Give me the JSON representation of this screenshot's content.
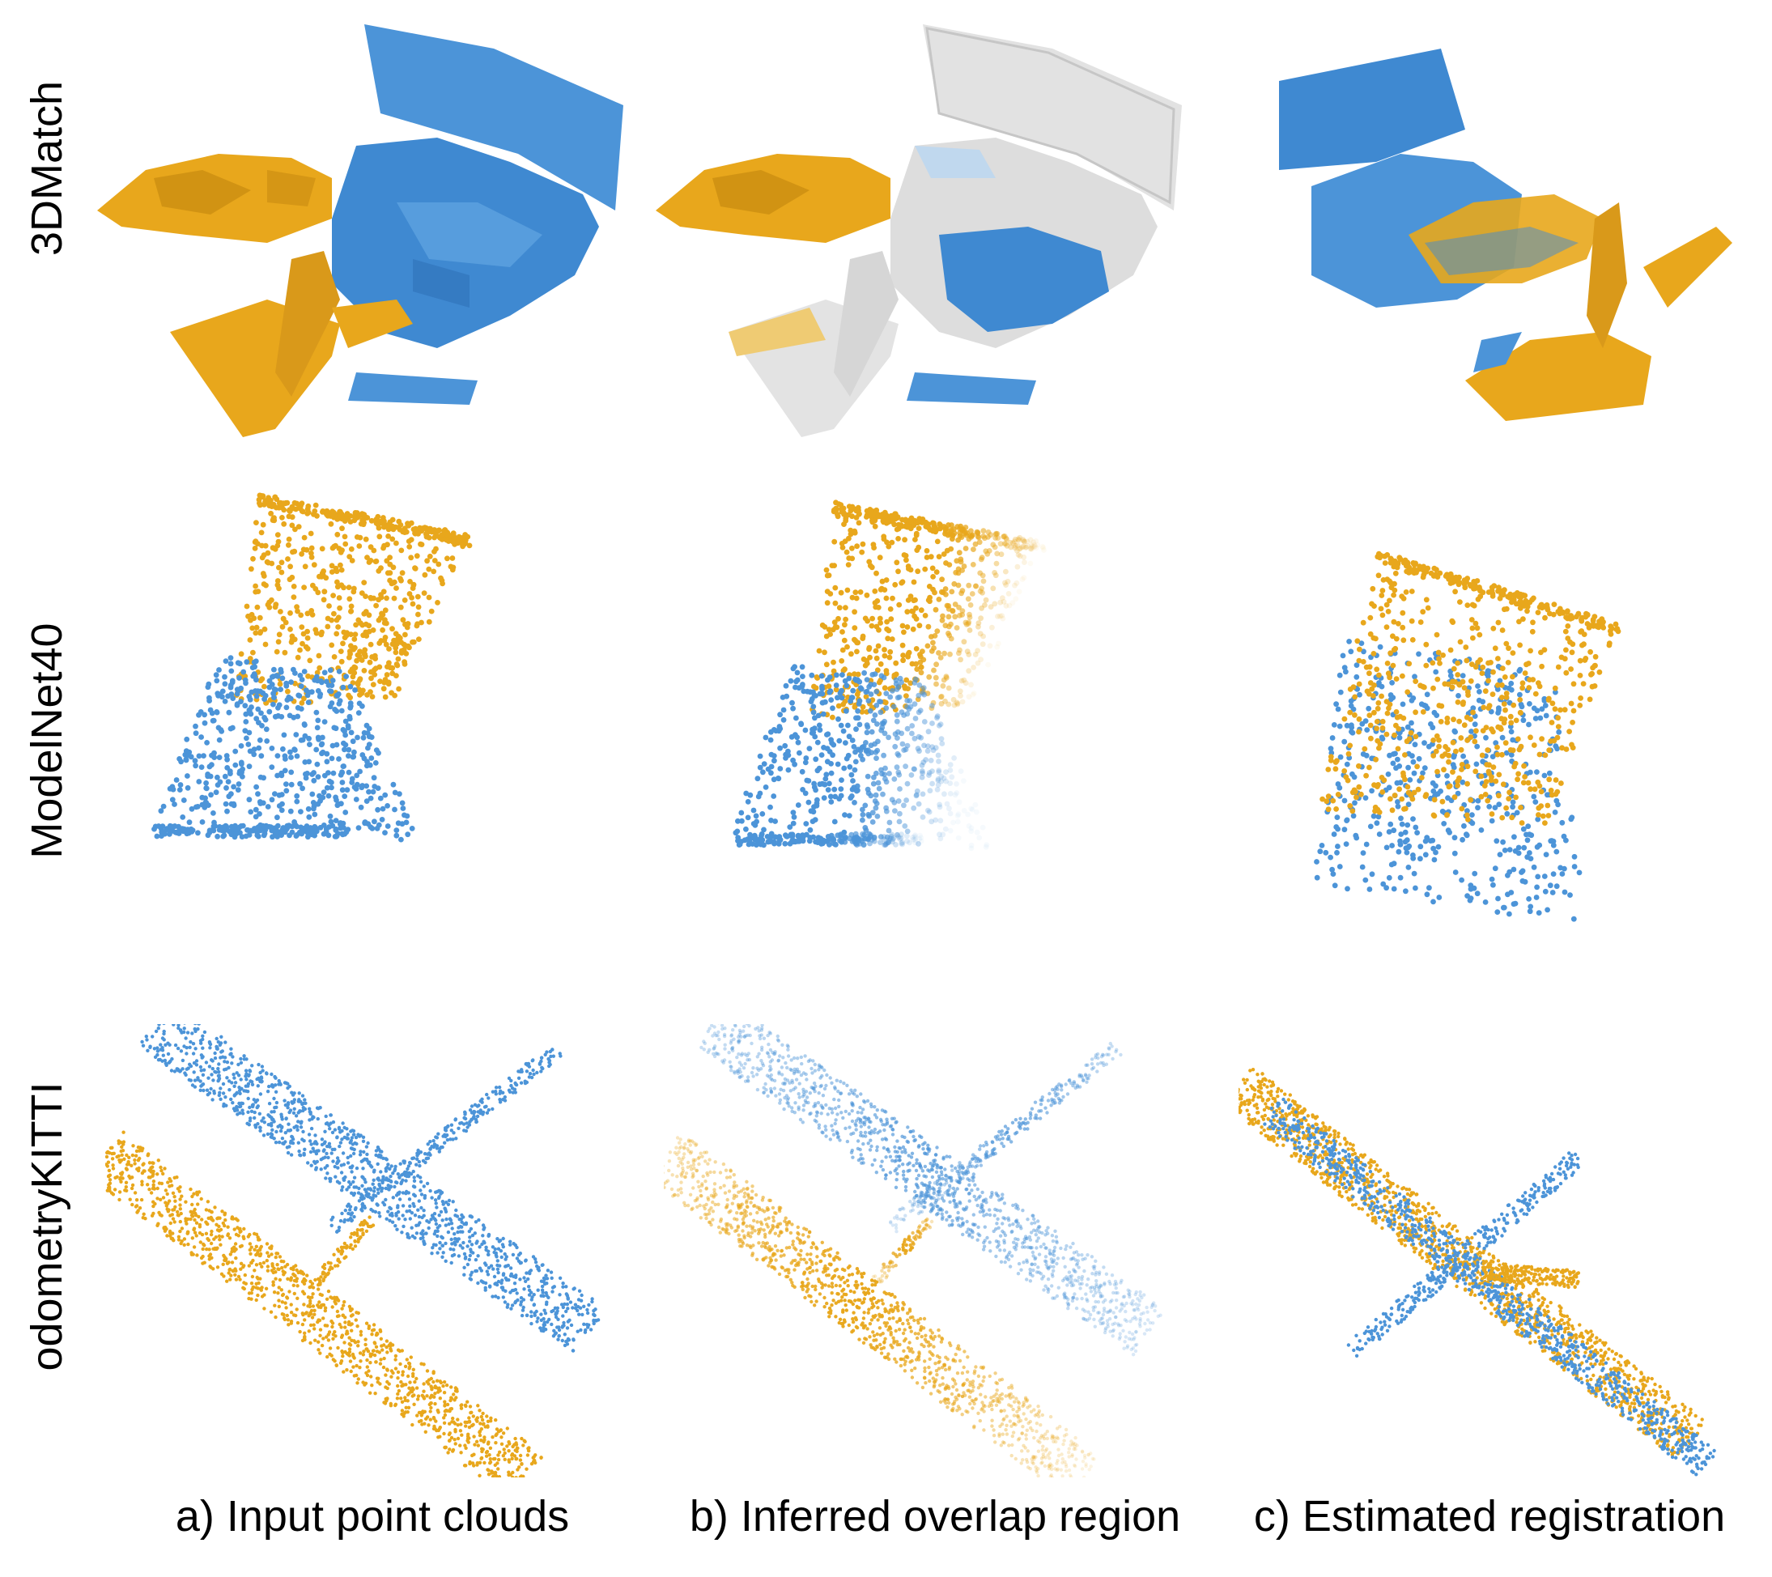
{
  "row_labels": [
    "3DMatch",
    "ModelNet40",
    "odometryKITTI"
  ],
  "column_labels": [
    "a) Input point clouds",
    "b) Inferred overlap region",
    "c) Estimated registration"
  ],
  "colors": {
    "source": "#E8A71C",
    "target": "#4C94D8",
    "target_light": "#6FAEE6",
    "overlap_gray": "#D9D9D9"
  }
}
